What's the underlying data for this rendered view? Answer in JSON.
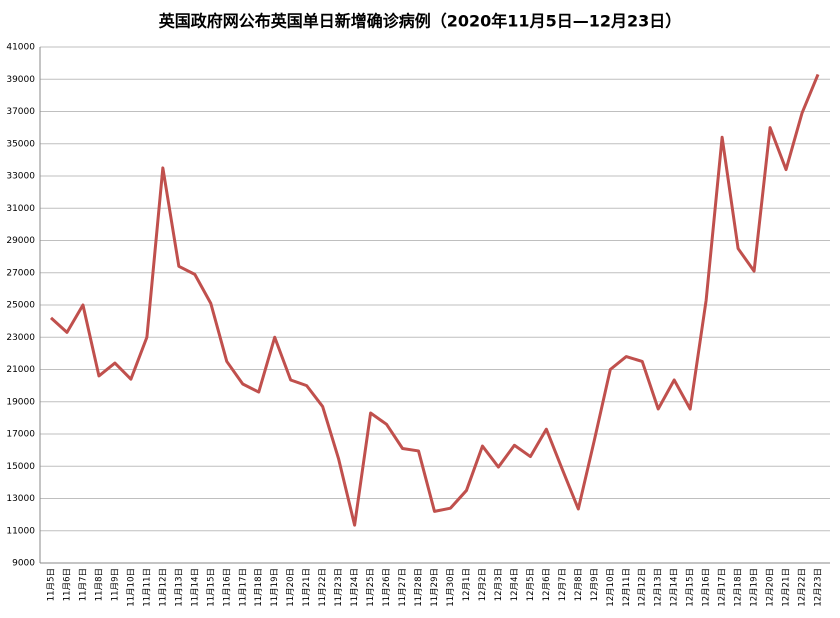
{
  "chart_data": {
    "type": "line",
    "title": "英国政府网公布英国单日新增确诊病例（2020年11月5日—12月23日）",
    "categories": [
      "11月5日",
      "11月6日",
      "11月7日",
      "11月8日",
      "11月9日",
      "11月10日",
      "11月11日",
      "11月12日",
      "11月13日",
      "11月14日",
      "11月15日",
      "11月16日",
      "11月17日",
      "11月18日",
      "11月19日",
      "11月20日",
      "11月21日",
      "11月22日",
      "11月23日",
      "11月24日",
      "11月25日",
      "11月26日",
      "11月27日",
      "11月28日",
      "11月29日",
      "11月30日",
      "12月1日",
      "12月2日",
      "12月3日",
      "12月4日",
      "12月5日",
      "12月6日",
      "12月7日",
      "12月8日",
      "12月9日",
      "12月10日",
      "12月11日",
      "12月12日",
      "12月13日",
      "12月14日",
      "12月15日",
      "12月16日",
      "12月17日",
      "12月18日",
      "12月19日",
      "12月20日",
      "12月21日",
      "12月22日",
      "12月23日"
    ],
    "series": [
      {
        "name": "新增确诊",
        "color": "#c0504d",
        "values": [
          24200,
          23300,
          25000,
          20600,
          21400,
          20400,
          23000,
          33500,
          27400,
          26900,
          25100,
          21500,
          20100,
          19600,
          23000,
          20350,
          20000,
          18700,
          15450,
          11350,
          18300,
          17600,
          16100,
          15950,
          12200,
          12400,
          13500,
          16250,
          14950,
          16300,
          15600,
          17300,
          14800,
          12350,
          16600,
          21000,
          21800,
          21500,
          18550,
          20350,
          18550,
          25300,
          35400,
          28500,
          27100,
          36000,
          33400,
          36900,
          39300
        ]
      }
    ],
    "ylim": [
      9000,
      41000
    ],
    "yticks": [
      9000,
      11000,
      13000,
      15000,
      17000,
      19000,
      21000,
      23000,
      25000,
      27000,
      29000,
      31000,
      33000,
      35000,
      37000,
      39000,
      41000
    ],
    "grid": true
  }
}
